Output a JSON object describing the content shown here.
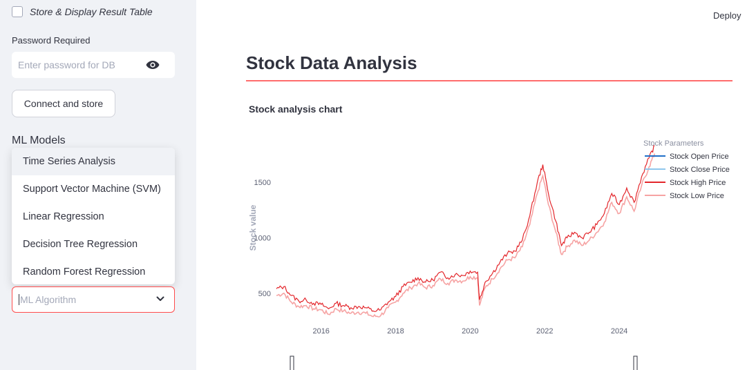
{
  "sidebar": {
    "checkbox_label": "Store & Display Result Table",
    "password_label": "Password Required",
    "password_placeholder": "Enter password for DB",
    "connect_button": "Connect and store",
    "ml_title": "ML Models",
    "dropdown_options": [
      "Time Series Analysis",
      "Support Vector Machine (SVM)",
      "Linear Regression",
      "Decision Tree Regression",
      "Random Forest Regression"
    ],
    "select_placeholder": "ML Algorithm"
  },
  "header": {
    "deploy": "Deploy"
  },
  "main": {
    "title": "Stock Data Analysis",
    "chart_title": "Stock analysis chart"
  },
  "colors": {
    "accent": "#ff4b4b",
    "open": "#1f6fc8",
    "close": "#8ec6ec",
    "high": "#e3252a",
    "low": "#f6a3a3"
  },
  "chart_data": {
    "type": "line",
    "title": "Stock analysis chart",
    "ylabel": "Stock value",
    "xlabel": "",
    "legend_title": "Stock Parameters",
    "legend_position": "top-right",
    "x_ticks": [
      "2016",
      "2018",
      "2020",
      "2022",
      "2024"
    ],
    "y_ticks": [
      500,
      1000,
      1500
    ],
    "xlim": [
      2014.8,
      2025.0
    ],
    "ylim": [
      250,
      1900
    ],
    "series_names": [
      "Stock Open Price",
      "Stock Close Price",
      "Stock High Price",
      "Stock Low Price"
    ],
    "x": [
      2014.8,
      2015.0,
      2015.2,
      2015.4,
      2015.6,
      2015.8,
      2016.0,
      2016.2,
      2016.4,
      2016.6,
      2016.8,
      2017.0,
      2017.2,
      2017.4,
      2017.6,
      2017.8,
      2018.0,
      2018.2,
      2018.4,
      2018.6,
      2018.8,
      2019.0,
      2019.2,
      2019.4,
      2019.6,
      2019.8,
      2020.0,
      2020.2,
      2020.25,
      2020.4,
      2020.6,
      2020.8,
      2021.0,
      2021.2,
      2021.4,
      2021.6,
      2021.8,
      2021.95,
      2022.1,
      2022.3,
      2022.45,
      2022.6,
      2022.8,
      2023.0,
      2023.2,
      2023.4,
      2023.6,
      2023.8,
      2024.0,
      2024.2,
      2024.4,
      2024.6,
      2024.8,
      2024.95
    ],
    "high": [
      540,
      560,
      480,
      430,
      440,
      410,
      400,
      360,
      410,
      390,
      370,
      380,
      370,
      340,
      350,
      420,
      470,
      560,
      600,
      640,
      600,
      620,
      690,
      640,
      670,
      660,
      700,
      690,
      440,
      600,
      680,
      780,
      860,
      880,
      980,
      1200,
      1500,
      1660,
      1400,
      1150,
      930,
      1000,
      1050,
      1000,
      1050,
      1120,
      1220,
      1400,
      1300,
      1450,
      1320,
      1550,
      1720,
      1830
    ],
    "low": [
      480,
      500,
      420,
      380,
      390,
      360,
      350,
      310,
      360,
      340,
      320,
      330,
      320,
      290,
      300,
      370,
      420,
      500,
      550,
      590,
      550,
      570,
      630,
      590,
      620,
      610,
      650,
      640,
      390,
      550,
      630,
      720,
      800,
      820,
      920,
      1120,
      1400,
      1560,
      1300,
      1050,
      850,
      920,
      980,
      930,
      980,
      1050,
      1140,
      1320,
      1220,
      1370,
      1240,
      1470,
      1640,
      1760
    ]
  }
}
